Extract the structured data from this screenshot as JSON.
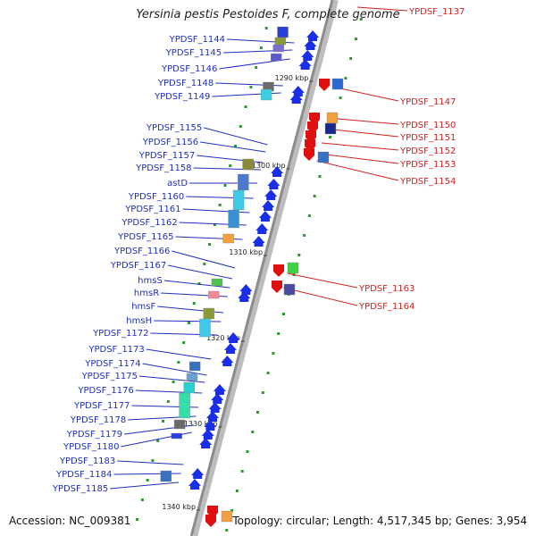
{
  "title": "Yersinia pestis Pestoides F, complete genome",
  "accession": "Accession: NC_009381",
  "topology": "Topology: circular; Length: 4,517,345 bp; Genes: 3,954",
  "colors": {
    "left_label": "#1f2fbf",
    "right_label": "#d21f1f",
    "backbone": "#8c8c8c"
  },
  "scale_labels": [
    "1290 kbp",
    "1300 kbp",
    "1310 kbp",
    "1320 kbp",
    "1330 kbp",
    "1340 kbp"
  ],
  "left_genes": [
    "YPDSF_1144",
    "YPDSF_1145",
    "YPDSF_1146",
    "YPDSF_1148",
    "YPDSF_1149",
    "YPDSF_1155",
    "YPDSF_1156",
    "YPDSF_1157",
    "YPDSF_1158",
    "astD",
    "YPDSF_1160",
    "YPDSF_1161",
    "YPDSF_1162",
    "YPDSF_1165",
    "YPDSF_1166",
    "YPDSF_1167",
    "hmsS",
    "hmsR",
    "hmsF",
    "hmsH",
    "YPDSF_1172",
    "YPDSF_1173",
    "YPDSF_1174",
    "YPDSF_1175",
    "YPDSF_1176",
    "YPDSF_1177",
    "YPDSF_1178",
    "YPDSF_1179",
    "YPDSF_1180",
    "YPDSF_1183",
    "YPDSF_1184",
    "YPDSF_1185"
  ],
  "right_genes": [
    "YPDSF_1137",
    "YPDSF_1147",
    "YPDSF_1150",
    "YPDSF_1151",
    "YPDSF_1152",
    "YPDSF_1153",
    "YPDSF_1154",
    "YPDSF_1163",
    "YPDSF_1164"
  ]
}
